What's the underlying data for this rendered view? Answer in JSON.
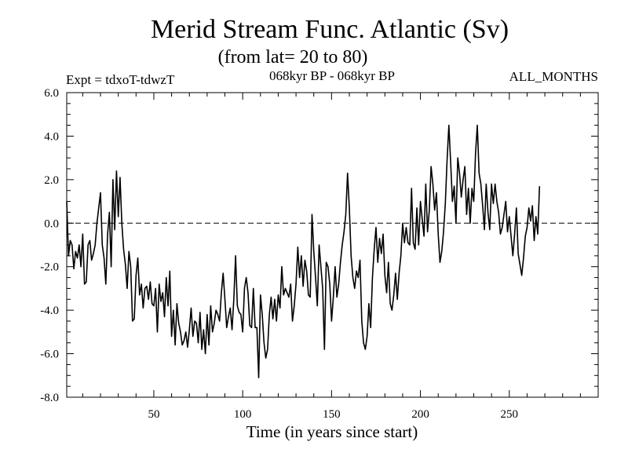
{
  "chart_data": {
    "type": "line",
    "title": "Merid Stream Func. Atlantic (Sv)",
    "subtitle": "(from lat= 20 to 80)",
    "expt_label": "Expt = tdxoT-tdwzT",
    "period_label": "068kyr BP - 068kyr BP",
    "months_label": "ALL_MONTHS",
    "xlabel": "Time (in years since start)",
    "ylabel": "",
    "xlim": [
      1,
      300
    ],
    "ylim": [
      -8,
      6
    ],
    "x_ticks": [
      50,
      100,
      150,
      200,
      250
    ],
    "x_tick_labels": [
      "50",
      "100",
      "150",
      "200",
      "250"
    ],
    "y_ticks": [
      -8,
      -6,
      -4,
      -2,
      0,
      2,
      4,
      6
    ],
    "y_tick_labels": [
      "-8.0",
      "-6.0",
      "-4.0",
      "-2.0",
      "0.0",
      "2.0",
      "4.0",
      "6.0"
    ],
    "reference_line": {
      "y": 0,
      "style": "dashed"
    },
    "grid": false,
    "series": [
      {
        "x_start": 1,
        "x_step": 1,
        "values": [
          1.0,
          -1.5,
          -0.8,
          -1.0,
          -2.1,
          -1.3,
          -1.6,
          -1.0,
          -2.0,
          -0.5,
          -2.8,
          -2.7,
          -1.0,
          -0.8,
          -1.7,
          -1.4,
          -1.0,
          0.0,
          0.7,
          1.4,
          -1.0,
          -1.6,
          -2.8,
          -0.5,
          0.5,
          -2.0,
          2.0,
          -0.3,
          2.4,
          0.3,
          2.1,
          0.0,
          -1.2,
          -1.9,
          -3.0,
          -1.3,
          -2.0,
          -4.5,
          -4.4,
          -2.4,
          -1.6,
          -3.3,
          -2.8,
          -3.9,
          -3.0,
          -2.9,
          -3.5,
          -2.7,
          -3.7,
          -3.8,
          -3.0,
          -5.0,
          -2.8,
          -3.6,
          -3.2,
          -4.3,
          -2.5,
          -3.8,
          -2.2,
          -5.2,
          -4.0,
          -5.6,
          -3.7,
          -4.6,
          -5.0,
          -5.6,
          -5.4,
          -5.0,
          -5.7,
          -4.9,
          -3.9,
          -5.2,
          -4.5,
          -4.6,
          -5.5,
          -4.1,
          -5.8,
          -4.9,
          -6.0,
          -4.2,
          -5.6,
          -3.8,
          -5.0,
          -4.6,
          -4.0,
          -4.2,
          -4.5,
          -3.2,
          -2.3,
          -3.5,
          -4.8,
          -4.3,
          -3.9,
          -4.9,
          -3.5,
          -1.5,
          -3.8,
          -4.1,
          -4.2,
          -5.0,
          -3.0,
          -2.5,
          -3.2,
          -4.7,
          -4.8,
          -3.0,
          -4.8,
          -4.8,
          -7.1,
          -3.3,
          -4.2,
          -5.5,
          -6.2,
          -5.8,
          -4.2,
          -3.4,
          -4.4,
          -3.5,
          -4.5,
          -3.3,
          -3.9,
          -2.0,
          -3.3,
          -3.0,
          -3.2,
          -3.4,
          -2.8,
          -4.5,
          -3.8,
          -2.8,
          -1.1,
          -2.5,
          -1.5,
          -2.9,
          -1.7,
          -2.2,
          -3.3,
          -3.4,
          0.4,
          -1.3,
          -2.5,
          -3.8,
          -1.0,
          -2.0,
          -3.0,
          -5.8,
          -1.8,
          -2.0,
          -2.8,
          -4.5,
          -3.4,
          -2.0,
          -3.4,
          -2.8,
          -1.8,
          -1.0,
          -0.4,
          0.4,
          2.3,
          0.7,
          -1.5,
          -2.5,
          -3.0,
          -2.2,
          -2.5,
          -1.7,
          -4.5,
          -5.5,
          -5.8,
          -5.2,
          -3.7,
          -4.8,
          -2.5,
          -1.2,
          -0.2,
          -1.8,
          -0.7,
          -1.4,
          -0.5,
          -2.4,
          -3.2,
          -1.8,
          -3.7,
          -4.0,
          -3.3,
          -2.3,
          -3.5,
          -2.3,
          -1.5,
          0.0,
          -0.9,
          -0.2,
          -0.9,
          -1.0,
          1.6,
          -0.9,
          -1.2,
          0.7,
          -1.0,
          1.0,
          0.2,
          -0.6,
          1.8,
          -0.4,
          0.6,
          2.6,
          1.8,
          0.6,
          1.4,
          -0.5,
          -1.8,
          -1.3,
          -0.4,
          0.9,
          2.9,
          4.5,
          2.8,
          1.0,
          1.7,
          0.0,
          3.0,
          2.3,
          1.2,
          2.0,
          2.6,
          0.4,
          1.6,
          0.0,
          1.6,
          1.0,
          3.2,
          4.5,
          2.3,
          1.8,
          0.8,
          -0.3,
          1.8,
          0.5,
          -0.3,
          1.8,
          0.9,
          1.8,
          1.0,
          0.5,
          -0.5,
          -0.2,
          0.4,
          1.0,
          -0.4,
          0.3,
          -0.6,
          -1.5,
          -0.5,
          0.7,
          -1.4,
          -1.9,
          -2.4,
          -1.6,
          -0.6,
          -0.2,
          0.7,
          0.1,
          0.8,
          -0.8,
          0.3,
          -0.5,
          1.7
        ]
      }
    ]
  }
}
